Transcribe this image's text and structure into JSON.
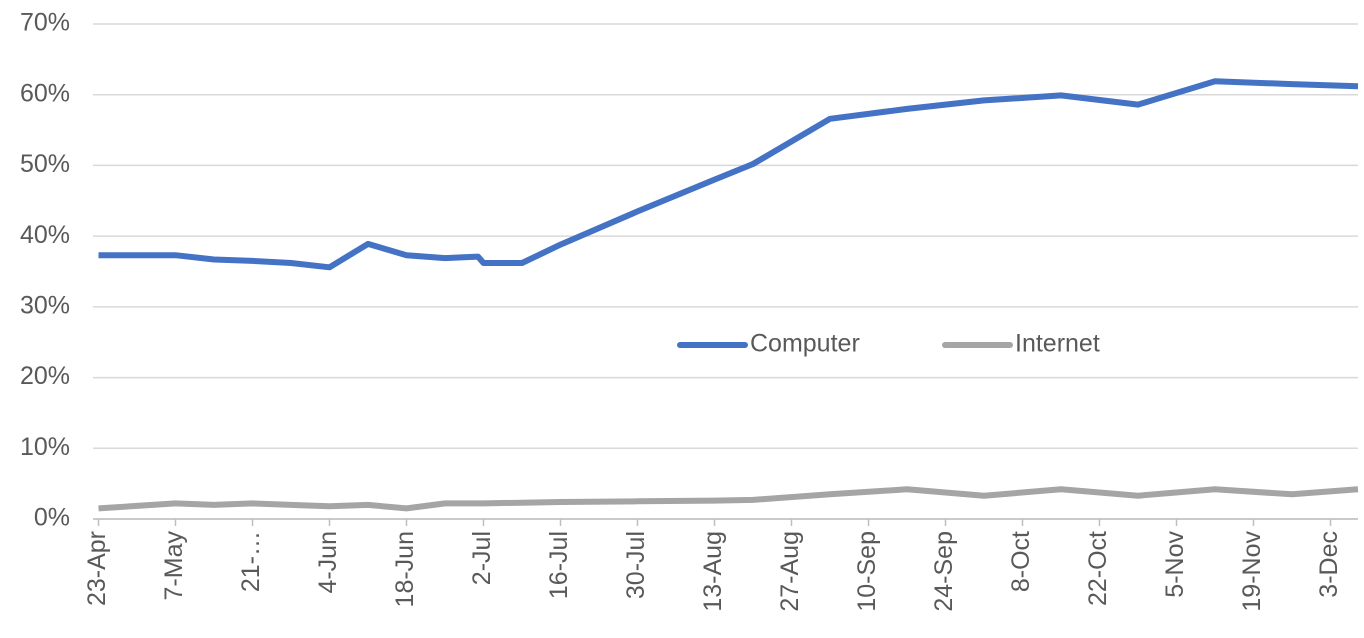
{
  "chart_data": {
    "type": "line",
    "x": [
      "23-Apr",
      "7-May",
      "14-May",
      "21-May",
      "28-May",
      "4-Jun",
      "11-Jun",
      "18-Jun",
      "25-Jun",
      "1-Jul",
      "2-Jul",
      "9-Jul",
      "16-Jul",
      "30-Jul",
      "13-Aug",
      "20-Aug",
      "3-Sep",
      "17-Sep",
      "1-Oct",
      "15-Oct",
      "29-Oct",
      "12-Nov",
      "26-Nov",
      "8-Dec"
    ],
    "series": [
      {
        "name": "Computer",
        "color": "#4472c4",
        "values": [
          37.3,
          37.3,
          36.7,
          36.5,
          36.2,
          35.6,
          38.9,
          37.3,
          36.9,
          37.1,
          36.2,
          36.2,
          38.8,
          43.5,
          48.0,
          50.2,
          56.6,
          58.0,
          59.2,
          59.9,
          58.6,
          61.9,
          61.5,
          61.2
        ]
      },
      {
        "name": "Internet",
        "color": "#a5a5a5",
        "values": [
          1.5,
          2.2,
          2.0,
          2.2,
          2.0,
          1.8,
          2.0,
          1.5,
          2.2,
          2.2,
          2.2,
          2.3,
          2.4,
          2.5,
          2.6,
          2.7,
          3.5,
          4.2,
          3.3,
          4.2,
          3.3,
          4.2,
          3.5,
          4.2
        ]
      }
    ],
    "xlim": [
      "22-Apr",
      "8-Dec"
    ],
    "xticks": [
      "23-Apr",
      "7-May",
      {
        "value": "21-May",
        "label": "21-…"
      },
      "4-Jun",
      "18-Jun",
      "2-Jul",
      "16-Jul",
      "30-Jul",
      "13-Aug",
      "27-Aug",
      "10-Sep",
      "24-Sep",
      "8-Oct",
      "22-Oct",
      "5-Nov",
      "19-Nov",
      "3-Dec"
    ],
    "ylim": [
      0,
      70
    ],
    "yticks": [
      {
        "value": 0,
        "label": "0%"
      },
      {
        "value": 10,
        "label": "10%"
      },
      {
        "value": 20,
        "label": "20%"
      },
      {
        "value": 30,
        "label": "30%"
      },
      {
        "value": 40,
        "label": "40%"
      },
      {
        "value": 50,
        "label": "50%"
      },
      {
        "value": 60,
        "label": "60%"
      },
      {
        "value": 70,
        "label": "70%"
      }
    ],
    "grid": true,
    "legend": "center"
  }
}
